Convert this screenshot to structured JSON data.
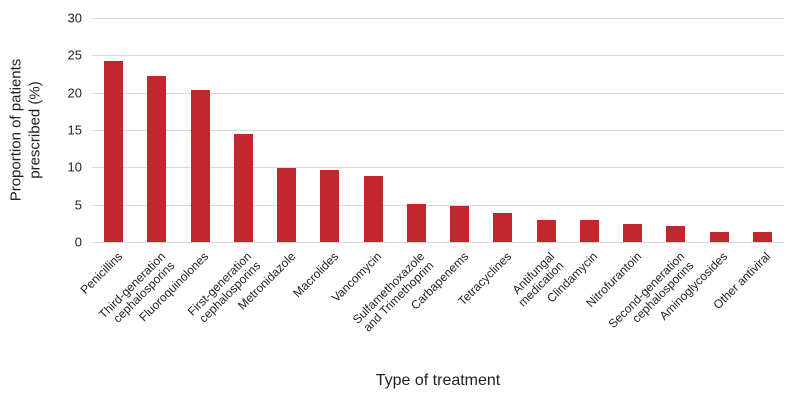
{
  "chart_data": {
    "type": "bar",
    "title": "",
    "xlabel": "Type of treatment",
    "ylabel": "Proportion of patients\nprescribed (%)",
    "ylim": [
      0,
      30
    ],
    "yticks": [
      0,
      5,
      10,
      15,
      20,
      25,
      30
    ],
    "grid": true,
    "legend": "none",
    "bar_color": "#c1272d",
    "gridline_color": "#d9d9d9",
    "text_color": "#231f20",
    "categories": [
      "Penicillins",
      "Third-generation\ncephalosporins",
      "Fluoroquinolones",
      "First-generation\ncephalosporins",
      "Metronidazole",
      "Macrolides",
      "Vancomycin",
      "Sulfamethoxazole\nand Trimethoprim",
      "Carbapenems",
      "Tetracyclines",
      "Antifungal\nmedication",
      "Clindamycin",
      "Nitrofurantoin",
      "Second-generation\ncephalosporins",
      "Aminoglycosides",
      "Other antiviral"
    ],
    "values": [
      24.3,
      22.2,
      20.4,
      14.4,
      9.9,
      9.7,
      8.9,
      5.1,
      4.8,
      3.9,
      3.0,
      2.9,
      2.4,
      2.2,
      1.4,
      1.3
    ]
  }
}
